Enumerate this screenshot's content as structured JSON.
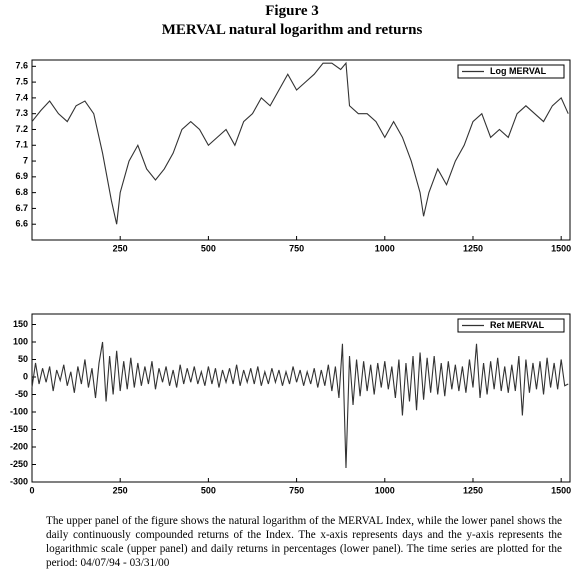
{
  "figure_label": "Figure 3",
  "figure_title": "MERVAL natural logarithm and returns",
  "caption": "The upper panel of the figure shows the natural logarithm of the MERVAL Index, while the lower panel shows the daily continuously compounded returns of the Index. The x-axis represents days and the y-axis represents the logarithmic scale (upper panel) and daily returns in percentages (lower panel). The time series are plotted for the period: 04/07/94 - 03/31/00",
  "chart_data": [
    {
      "type": "line",
      "legend": "upper right",
      "x": [
        0,
        25,
        50,
        75,
        100,
        125,
        150,
        175,
        200,
        225,
        240,
        250,
        275,
        300,
        325,
        350,
        375,
        400,
        425,
        450,
        475,
        500,
        525,
        550,
        575,
        600,
        625,
        650,
        675,
        700,
        725,
        750,
        775,
        800,
        825,
        850,
        875,
        890,
        900,
        925,
        950,
        975,
        1000,
        1025,
        1050,
        1075,
        1100,
        1110,
        1125,
        1150,
        1175,
        1200,
        1225,
        1250,
        1275,
        1300,
        1325,
        1350,
        1375,
        1400,
        1425,
        1450,
        1475,
        1500,
        1520
      ],
      "series": [
        {
          "name": "Log  MERVAL",
          "color": "#333333",
          "values": [
            7.25,
            7.32,
            7.38,
            7.3,
            7.25,
            7.35,
            7.38,
            7.3,
            7.05,
            6.75,
            6.6,
            6.8,
            7.0,
            7.1,
            6.95,
            6.88,
            6.95,
            7.05,
            7.2,
            7.25,
            7.2,
            7.1,
            7.15,
            7.2,
            7.1,
            7.25,
            7.3,
            7.4,
            7.35,
            7.45,
            7.55,
            7.45,
            7.5,
            7.55,
            7.62,
            7.62,
            7.58,
            7.62,
            7.35,
            7.3,
            7.3,
            7.25,
            7.15,
            7.25,
            7.15,
            7.0,
            6.8,
            6.65,
            6.8,
            6.95,
            6.85,
            7.0,
            7.1,
            7.25,
            7.3,
            7.15,
            7.2,
            7.15,
            7.3,
            7.35,
            7.3,
            7.25,
            7.35,
            7.4,
            7.3
          ]
        }
      ],
      "xlim": [
        0,
        1525
      ],
      "xticks": [
        250,
        500,
        750,
        1000,
        1250,
        1500
      ],
      "ylim": [
        6.5,
        7.64
      ],
      "yticks": [
        6.6,
        6.7,
        6.8,
        6.9,
        7,
        7.1,
        7.2,
        7.3,
        7.4,
        7.5,
        7.6
      ]
    },
    {
      "type": "line",
      "legend": "upper right",
      "x": [
        0,
        10,
        20,
        30,
        40,
        50,
        60,
        70,
        80,
        90,
        100,
        110,
        120,
        130,
        140,
        150,
        160,
        170,
        180,
        190,
        200,
        210,
        220,
        230,
        240,
        250,
        260,
        270,
        280,
        290,
        300,
        310,
        320,
        330,
        340,
        350,
        360,
        370,
        380,
        390,
        400,
        410,
        420,
        430,
        440,
        450,
        460,
        470,
        480,
        490,
        500,
        510,
        520,
        530,
        540,
        550,
        560,
        570,
        580,
        590,
        600,
        610,
        620,
        630,
        640,
        650,
        660,
        670,
        680,
        690,
        700,
        710,
        720,
        730,
        740,
        750,
        760,
        770,
        780,
        790,
        800,
        810,
        820,
        830,
        840,
        850,
        860,
        870,
        880,
        890,
        900,
        910,
        920,
        930,
        940,
        950,
        960,
        970,
        980,
        990,
        1000,
        1010,
        1020,
        1030,
        1040,
        1050,
        1060,
        1070,
        1080,
        1090,
        1100,
        1110,
        1120,
        1130,
        1140,
        1150,
        1160,
        1170,
        1180,
        1190,
        1200,
        1210,
        1220,
        1230,
        1240,
        1250,
        1260,
        1270,
        1280,
        1290,
        1300,
        1310,
        1320,
        1330,
        1340,
        1350,
        1360,
        1370,
        1380,
        1390,
        1400,
        1410,
        1420,
        1430,
        1440,
        1450,
        1460,
        1470,
        1480,
        1490,
        1500,
        1510,
        1520
      ],
      "series": [
        {
          "name": "Ret  MERVAL",
          "color": "#333333",
          "values": [
            -30,
            40,
            -20,
            25,
            -15,
            30,
            -40,
            20,
            -10,
            35,
            -25,
            15,
            -45,
            30,
            -20,
            50,
            -30,
            25,
            -60,
            40,
            100,
            -70,
            60,
            -50,
            75,
            -40,
            45,
            -35,
            55,
            -30,
            40,
            -25,
            30,
            -20,
            45,
            -35,
            25,
            -15,
            30,
            -25,
            20,
            -30,
            35,
            -20,
            25,
            -15,
            30,
            -20,
            15,
            -25,
            30,
            -20,
            25,
            -30,
            20,
            -15,
            25,
            -20,
            35,
            -25,
            20,
            -15,
            25,
            -20,
            30,
            -25,
            15,
            -20,
            25,
            -15,
            20,
            -25,
            15,
            -20,
            30,
            -15,
            20,
            -25,
            15,
            -20,
            25,
            -30,
            20,
            -25,
            35,
            -40,
            30,
            -60,
            95,
            -260,
            60,
            -80,
            50,
            -55,
            45,
            -40,
            35,
            -50,
            40,
            -30,
            45,
            -35,
            30,
            -60,
            50,
            -110,
            40,
            -70,
            60,
            -95,
            70,
            -65,
            55,
            -45,
            60,
            -50,
            40,
            -55,
            45,
            -35,
            35,
            -40,
            30,
            -45,
            50,
            -30,
            95,
            -60,
            40,
            -50,
            45,
            -35,
            55,
            -40,
            30,
            -45,
            35,
            -40,
            60,
            -110,
            50,
            -45,
            40,
            -35,
            45,
            -50,
            55,
            -30,
            40,
            -35,
            50,
            -25,
            -20
          ]
        }
      ],
      "xlim": [
        0,
        1525
      ],
      "xticks": [
        0,
        250,
        500,
        750,
        1000,
        1250,
        1500
      ],
      "ylim": [
        -300,
        180
      ],
      "yticks": [
        -300,
        -250,
        -200,
        -150,
        -100,
        -50,
        0,
        50,
        100,
        150
      ]
    }
  ]
}
